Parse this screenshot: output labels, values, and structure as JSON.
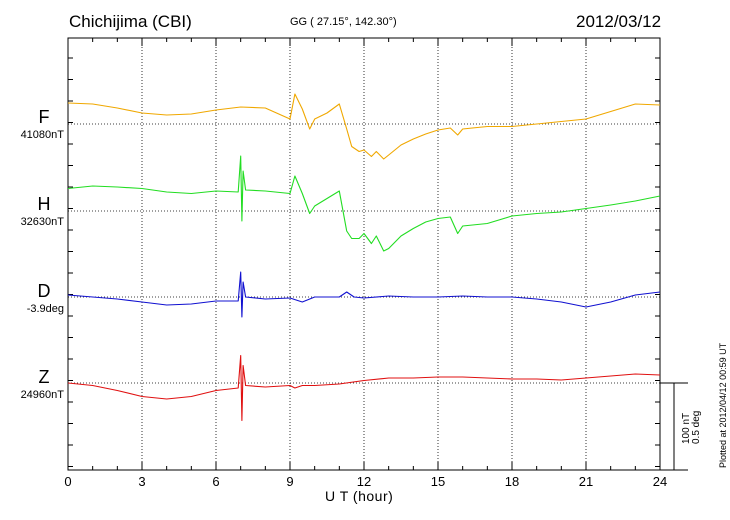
{
  "header": {
    "station": "Chichijima (CBI)",
    "coords": "GG ( 27.15°, 142.30°)",
    "date": "2012/03/12"
  },
  "footer": {
    "x_axis_title": "U T (hour)",
    "plotted_note": "Plotted at 2012/04/12 00:59 UT"
  },
  "scale": {
    "nt": "100 nT",
    "deg": "0.5 deg"
  },
  "channels": [
    {
      "id": "F",
      "label": "F",
      "baseline": "41080nT",
      "color": "#f0a800"
    },
    {
      "id": "H",
      "label": "H",
      "baseline": "32630nT",
      "color": "#22dd22"
    },
    {
      "id": "D",
      "label": "D",
      "baseline": "-3.9deg",
      "color": "#1010d0"
    },
    {
      "id": "Z",
      "label": "Z",
      "baseline": "24960nT",
      "color": "#e01010"
    }
  ],
  "chart_data": {
    "type": "line",
    "x_unit": "hour UT",
    "xlim": [
      0,
      24
    ],
    "xticks": [
      0,
      3,
      6,
      9,
      12,
      15,
      18,
      21,
      24
    ],
    "xtick_labels": [
      "0",
      "3",
      "6",
      "9",
      "12",
      "15",
      "18",
      "21",
      "24"
    ],
    "y_unit": "nT relative to channel baseline (D in deg)",
    "series": [
      {
        "name": "F",
        "baseline": "41080nT",
        "x": [
          0,
          1,
          2,
          3,
          4,
          5,
          6,
          7,
          8,
          9,
          9.2,
          9.5,
          9.8,
          10,
          10.5,
          11,
          11.3,
          11.5,
          11.8,
          12,
          12.3,
          12.5,
          12.8,
          13,
          13.5,
          14,
          14.5,
          15,
          15.5,
          15.8,
          16,
          17,
          18,
          19,
          20,
          21,
          22,
          23,
          24
        ],
        "values": [
          42,
          40,
          32,
          22,
          18,
          20,
          28,
          34,
          32,
          10,
          60,
          30,
          -10,
          10,
          22,
          40,
          -10,
          -45,
          -55,
          -52,
          -65,
          -55,
          -70,
          -62,
          -42,
          -30,
          -20,
          -12,
          -8,
          -22,
          -10,
          -5,
          -5,
          0,
          5,
          10,
          25,
          40,
          38
        ]
      },
      {
        "name": "H",
        "baseline": "32630nT",
        "x": [
          0,
          1,
          2,
          3,
          4,
          5,
          6,
          6.9,
          7.0,
          7.05,
          7.1,
          7.2,
          8,
          9,
          9.2,
          9.5,
          9.8,
          10,
          10.5,
          11,
          11.3,
          11.5,
          11.8,
          12,
          12.3,
          12.5,
          12.8,
          13,
          13.5,
          14,
          14.5,
          15,
          15.5,
          15.8,
          16,
          17,
          18,
          19,
          20,
          21,
          22,
          23,
          24
        ],
        "values": [
          45,
          50,
          48,
          45,
          38,
          35,
          40,
          38,
          110,
          -20,
          80,
          42,
          40,
          35,
          70,
          35,
          -5,
          10,
          25,
          40,
          -40,
          -55,
          -55,
          -45,
          -65,
          -50,
          -80,
          -75,
          -50,
          -35,
          -22,
          -15,
          -12,
          -45,
          -30,
          -25,
          -10,
          -5,
          -2,
          5,
          12,
          20,
          30
        ]
      },
      {
        "name": "D",
        "baseline": "-3.9deg",
        "x": [
          0,
          1,
          2,
          3,
          4,
          5,
          6,
          6.9,
          7.0,
          7.05,
          7.1,
          7.2,
          8,
          9,
          9.5,
          10,
          11,
          11.3,
          11.6,
          12,
          13,
          14,
          15,
          16,
          17,
          18,
          19,
          20,
          21,
          22,
          23,
          24
        ],
        "values": [
          0.02,
          0.0,
          -0.02,
          -0.05,
          -0.08,
          -0.07,
          -0.04,
          -0.04,
          0.25,
          -0.2,
          0.15,
          0.0,
          -0.02,
          -0.01,
          -0.05,
          0.0,
          0.0,
          0.05,
          0.0,
          -0.01,
          0.01,
          0.0,
          0.0,
          0.01,
          0.0,
          0.0,
          -0.02,
          -0.05,
          -0.1,
          -0.05,
          0.02,
          0.05
        ]
      },
      {
        "name": "Z",
        "baseline": "24960nT",
        "x": [
          0,
          1,
          2,
          3,
          4,
          5,
          6,
          6.9,
          7.0,
          7.05,
          7.1,
          7.2,
          8,
          9,
          9.2,
          9.5,
          10,
          11,
          12,
          13,
          14,
          15,
          16,
          17,
          18,
          19,
          20,
          21,
          22,
          23,
          24
        ],
        "values": [
          0,
          -5,
          -15,
          -27,
          -32,
          -27,
          -15,
          -10,
          55,
          -75,
          35,
          -5,
          -8,
          -5,
          -10,
          -5,
          -5,
          -2,
          5,
          10,
          10,
          12,
          12,
          10,
          8,
          8,
          6,
          10,
          14,
          18,
          16
        ]
      }
    ]
  }
}
